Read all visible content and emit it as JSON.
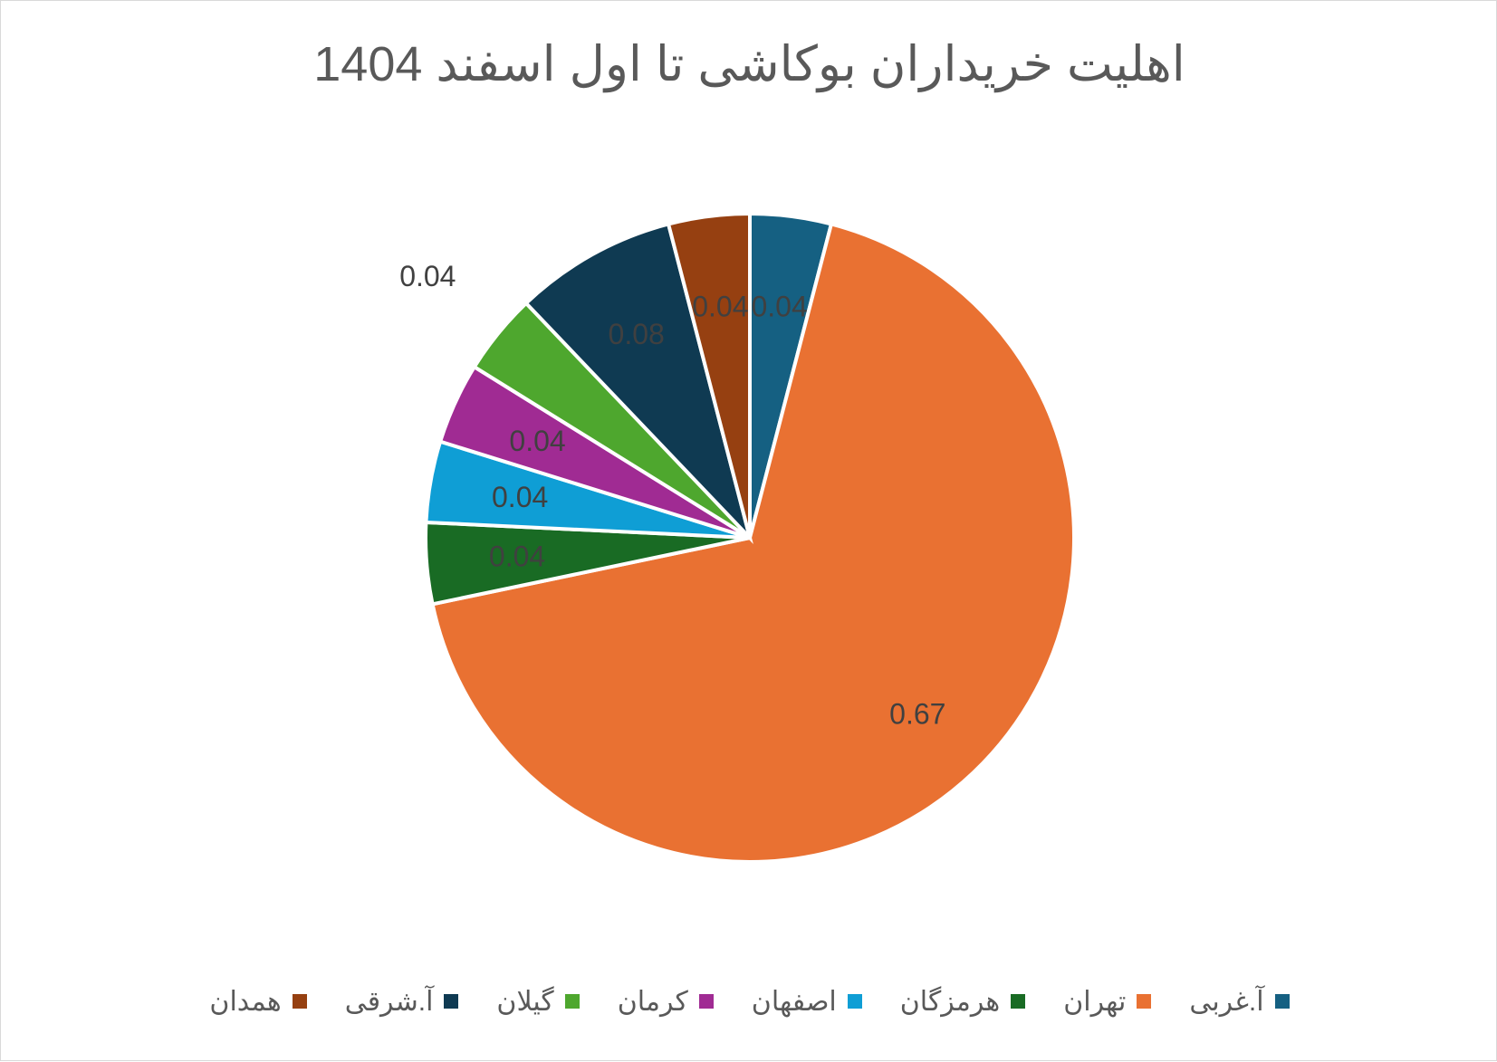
{
  "chart_data": {
    "type": "pie",
    "title": "اهلیت خریداران بوکاشی تا  اول اسفند 1404",
    "categories": [
      "همدان",
      "آ.شرقی",
      "گیلان",
      "کرمان",
      "اصفهان",
      "هرمزگان",
      "تهران",
      "آ.غربی"
    ],
    "values": [
      0.04,
      0.08,
      0.04,
      0.04,
      0.04,
      0.04,
      0.67,
      0.04
    ],
    "labels": [
      "0.04",
      "0.08",
      "0.04",
      "0.04",
      "0.04",
      "0.04",
      "0.67",
      "0.04"
    ],
    "colors": [
      "#964011",
      "#0f3a52",
      "#4ea72e",
      "#a02b93",
      "#0f9ed5",
      "#196b24",
      "#e97132",
      "#156082"
    ],
    "legend_position": "bottom"
  }
}
